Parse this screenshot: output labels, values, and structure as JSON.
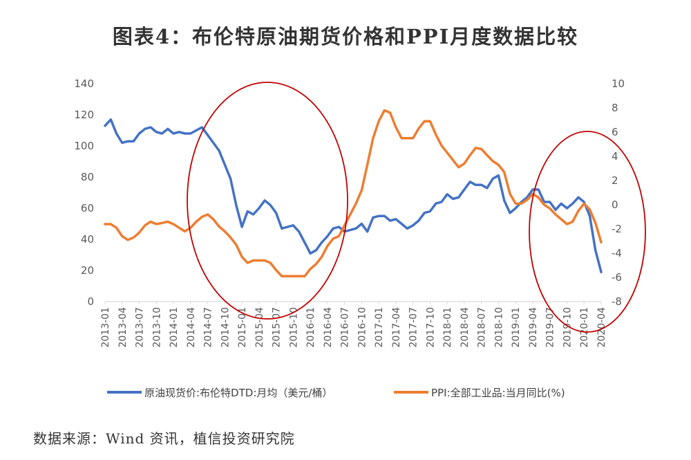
{
  "title": "图表4：布伦特原油期货价格和PPI月度数据比较",
  "source": "数据来源：Wind 资讯，植信投资研究院",
  "colors": {
    "brent": "#4472C4",
    "ppi": "#ED7D31",
    "ellipse": "#C00000",
    "axis": "#D9D9D9"
  },
  "chart_data": {
    "type": "line",
    "title": "图表4：布伦特原油期货价格和PPI月度数据比较",
    "x_labels": [
      "2013-01",
      "2013-04",
      "2013-07",
      "2013-10",
      "2014-01",
      "2014-04",
      "2014-07",
      "2014-10",
      "2015-01",
      "2015-04",
      "2015-07",
      "2015-10",
      "2016-01",
      "2016-04",
      "2016-07",
      "2016-10",
      "2017-01",
      "2017-04",
      "2017-07",
      "2017-10",
      "2018-01",
      "2018-04",
      "2018-07",
      "2018-10",
      "2019-01",
      "2019-04",
      "2019-07",
      "2019-10",
      "2020-01",
      "2020-04"
    ],
    "left_axis": {
      "ylim": [
        0,
        140
      ],
      "ticks": [
        "140",
        "120",
        "100",
        "80",
        "60",
        "40",
        "20",
        "0"
      ]
    },
    "right_axis": {
      "ylim": [
        -8,
        10
      ],
      "ticks": [
        "10",
        "8",
        "6",
        "4",
        "2",
        "0",
        "-2",
        "-4",
        "-6",
        "-8"
      ]
    },
    "series": [
      {
        "name": "原油现货价:布伦特DTD:月均（美元/桶）",
        "axis": "left",
        "values": [
          113,
          117,
          108,
          102,
          103,
          103,
          108,
          111,
          112,
          109,
          108,
          111,
          108,
          109,
          108,
          108,
          110,
          112,
          107,
          102,
          97,
          88,
          79,
          62,
          48,
          58,
          56,
          60,
          65,
          62,
          57,
          47,
          48,
          49,
          45,
          38,
          31,
          33,
          38,
          42,
          47,
          48,
          45,
          46,
          47,
          50,
          45,
          54,
          55,
          55,
          52,
          53,
          50,
          47,
          49,
          52,
          57,
          58,
          63,
          64,
          69,
          66,
          67,
          72,
          77,
          75,
          75,
          73,
          79,
          81,
          65,
          57,
          60,
          64,
          67,
          72,
          72,
          64,
          64,
          59,
          63,
          60,
          63,
          67,
          64,
          55,
          33,
          19
        ]
      },
      {
        "name": "PPI:全部工业品:当月同比(%)",
        "axis": "right",
        "values": [
          -1.6,
          -1.6,
          -1.9,
          -2.6,
          -2.9,
          -2.7,
          -2.3,
          -1.7,
          -1.4,
          -1.6,
          -1.5,
          -1.4,
          -1.6,
          -1.9,
          -2.2,
          -1.9,
          -1.4,
          -1.0,
          -0.8,
          -1.2,
          -1.8,
          -2.2,
          -2.7,
          -3.3,
          -4.3,
          -4.8,
          -4.6,
          -4.6,
          -4.6,
          -4.8,
          -5.4,
          -5.9,
          -5.9,
          -5.9,
          -5.9,
          -5.9,
          -5.3,
          -4.9,
          -4.3,
          -3.4,
          -2.8,
          -2.6,
          -1.7,
          -0.8,
          0.1,
          1.2,
          3.3,
          5.5,
          6.9,
          7.8,
          7.6,
          6.4,
          5.5,
          5.5,
          5.5,
          6.3,
          6.9,
          6.9,
          5.8,
          4.9,
          4.3,
          3.7,
          3.1,
          3.4,
          4.1,
          4.7,
          4.6,
          4.1,
          3.6,
          3.3,
          2.7,
          0.9,
          0.1,
          0.1,
          0.4,
          0.9,
          0.6,
          0,
          -0.3,
          -0.8,
          -1.2,
          -1.6,
          -1.4,
          -0.5,
          0.1,
          -0.4,
          -1.5,
          -3.1
        ]
      }
    ],
    "legend_position": "bottom",
    "grid": false
  }
}
